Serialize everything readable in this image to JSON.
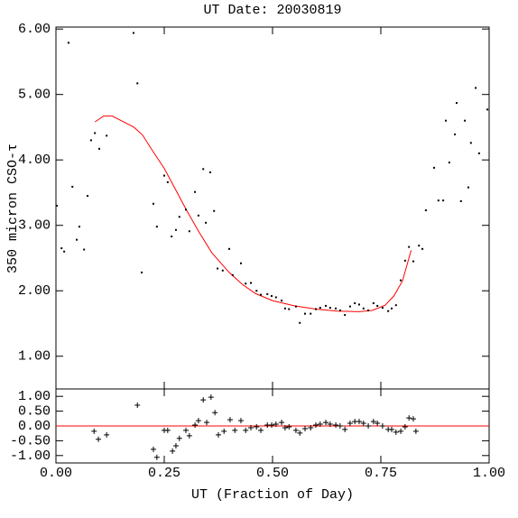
{
  "chart_data": [
    {
      "type": "scatter",
      "title": "UT Date: 20030819",
      "ylabel": "350 micron CSO-τ",
      "color": "#000000",
      "x": [
        0.002,
        0.013,
        0.019,
        0.029,
        0.038,
        0.048,
        0.054,
        0.065,
        0.073,
        0.081,
        0.09,
        0.1,
        0.117,
        0.179,
        0.188,
        0.198,
        0.225,
        0.233,
        0.25,
        0.258,
        0.267,
        0.277,
        0.285,
        0.3,
        0.308,
        0.321,
        0.329,
        0.34,
        0.346,
        0.356,
        0.365,
        0.373,
        0.385,
        0.4,
        0.408,
        0.427,
        0.438,
        0.45,
        0.463,
        0.473,
        0.488,
        0.498,
        0.508,
        0.521,
        0.529,
        0.538,
        0.554,
        0.563,
        0.575,
        0.588,
        0.6,
        0.61,
        0.623,
        0.633,
        0.646,
        0.656,
        0.667,
        0.679,
        0.69,
        0.7,
        0.71,
        0.721,
        0.733,
        0.742,
        0.754,
        0.767,
        0.775,
        0.785,
        0.796,
        0.806,
        0.815,
        0.825,
        0.838,
        0.846,
        0.854,
        0.873,
        0.883,
        0.894,
        0.9,
        0.908,
        0.921,
        0.925,
        0.935,
        0.944,
        0.952,
        0.958,
        0.969,
        0.977,
        0.996
      ],
      "values": [
        3.3,
        2.65,
        2.6,
        5.79,
        3.59,
        2.78,
        2.98,
        2.63,
        3.45,
        4.3,
        4.41,
        4.17,
        4.37,
        5.94,
        5.17,
        2.28,
        3.33,
        2.98,
        3.76,
        3.66,
        2.83,
        2.93,
        3.13,
        3.24,
        2.91,
        3.51,
        3.15,
        3.86,
        3.04,
        3.81,
        3.22,
        2.34,
        2.31,
        2.64,
        2.24,
        2.42,
        2.11,
        2.12,
        2.0,
        1.94,
        1.95,
        1.92,
        1.9,
        1.85,
        1.73,
        1.72,
        1.76,
        1.51,
        1.65,
        1.65,
        1.72,
        1.74,
        1.77,
        1.74,
        1.73,
        1.7,
        1.63,
        1.76,
        1.81,
        1.79,
        1.73,
        1.7,
        1.81,
        1.77,
        1.74,
        1.69,
        1.73,
        1.78,
        2.16,
        2.46,
        2.67,
        2.45,
        2.69,
        2.64,
        3.23,
        3.88,
        3.38,
        3.38,
        4.6,
        3.96,
        4.39,
        4.87,
        3.37,
        4.6,
        3.58,
        4.26,
        5.1,
        4.1,
        4.77
      ],
      "fit_color": "#ff0000",
      "fit_x": [
        0.09,
        0.11,
        0.13,
        0.18,
        0.2,
        0.22,
        0.25,
        0.28,
        0.3,
        0.33,
        0.36,
        0.4,
        0.43,
        0.46,
        0.5,
        0.55,
        0.6,
        0.65,
        0.7,
        0.73,
        0.76,
        0.78,
        0.8,
        0.82
      ],
      "fit_values": [
        4.58,
        4.67,
        4.67,
        4.5,
        4.38,
        4.17,
        3.87,
        3.5,
        3.25,
        2.9,
        2.58,
        2.28,
        2.1,
        1.96,
        1.85,
        1.77,
        1.72,
        1.69,
        1.68,
        1.7,
        1.78,
        1.92,
        2.15,
        2.62
      ],
      "xlim": [
        0,
        1
      ],
      "xticks": [
        0,
        0.25,
        0.5,
        0.75,
        1
      ],
      "ylim": [
        0.5,
        6.03
      ],
      "yticks": [
        {
          "value": 1,
          "label": "1.00"
        },
        {
          "value": 2,
          "label": "2.00"
        },
        {
          "value": 3,
          "label": "3.00"
        },
        {
          "value": 4,
          "label": "4.00"
        },
        {
          "value": 5,
          "label": "5.00"
        },
        {
          "value": 6,
          "label": "6.00"
        }
      ]
    },
    {
      "type": "scatter",
      "marker": "plus",
      "xlabel": "UT (Fraction of Day)",
      "color": "#000000",
      "x": [
        0.088,
        0.098,
        0.117,
        0.188,
        0.225,
        0.233,
        0.25,
        0.258,
        0.269,
        0.277,
        0.285,
        0.3,
        0.308,
        0.321,
        0.329,
        0.34,
        0.348,
        0.358,
        0.367,
        0.375,
        0.388,
        0.402,
        0.413,
        0.427,
        0.438,
        0.45,
        0.463,
        0.473,
        0.488,
        0.498,
        0.508,
        0.521,
        0.529,
        0.538,
        0.554,
        0.563,
        0.575,
        0.588,
        0.6,
        0.61,
        0.623,
        0.633,
        0.646,
        0.656,
        0.667,
        0.679,
        0.69,
        0.7,
        0.71,
        0.721,
        0.733,
        0.742,
        0.754,
        0.767,
        0.775,
        0.785,
        0.796,
        0.806,
        0.815,
        0.825,
        0.831
      ],
      "values": [
        -0.18,
        -0.45,
        -0.3,
        0.7,
        -0.79,
        -1.06,
        -0.15,
        -0.15,
        -0.85,
        -0.67,
        -0.42,
        -0.15,
        -0.33,
        0.03,
        0.18,
        0.88,
        0.12,
        0.97,
        0.45,
        -0.3,
        -0.18,
        0.21,
        -0.15,
        0.18,
        -0.15,
        -0.06,
        -0.03,
        -0.15,
        0.03,
        0.03,
        0.06,
        0.12,
        -0.06,
        -0.03,
        -0.15,
        -0.24,
        -0.09,
        -0.06,
        0.03,
        0.06,
        0.12,
        0.06,
        0.03,
        0.0,
        -0.12,
        0.09,
        0.15,
        0.15,
        0.09,
        0.0,
        0.15,
        0.09,
        0.0,
        -0.12,
        -0.12,
        -0.21,
        -0.18,
        -0.03,
        0.27,
        0.24,
        -0.18
      ],
      "reference_line": {
        "value": 0,
        "color": "#ff0000"
      },
      "xlim": [
        0,
        1
      ],
      "xticks": [
        {
          "value": 0,
          "label": "0.00"
        },
        {
          "value": 0.25,
          "label": "0.25"
        },
        {
          "value": 0.5,
          "label": "0.50"
        },
        {
          "value": 0.75,
          "label": "0.75"
        },
        {
          "value": 1,
          "label": "1.00"
        }
      ],
      "ylim": [
        -1.25,
        1.25
      ],
      "yticks": [
        {
          "value": -1,
          "label": "-1.00"
        },
        {
          "value": -0.5,
          "label": "-0.50"
        },
        {
          "value": 0,
          "label": "0.00"
        },
        {
          "value": 0.5,
          "label": "0.50"
        },
        {
          "value": 1,
          "label": "1.00"
        }
      ]
    }
  ]
}
